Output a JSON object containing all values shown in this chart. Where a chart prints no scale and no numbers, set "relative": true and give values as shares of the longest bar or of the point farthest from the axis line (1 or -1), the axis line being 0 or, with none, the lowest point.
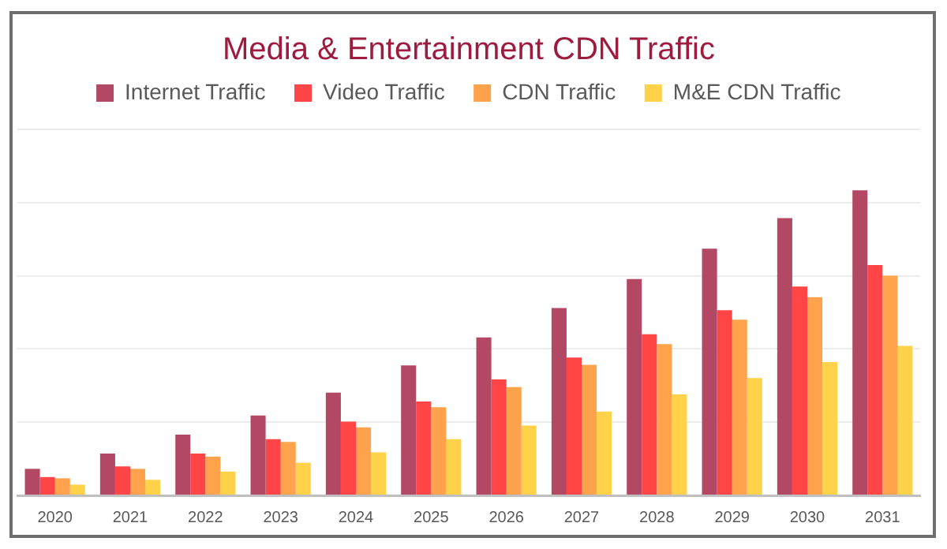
{
  "chart_data": {
    "type": "bar",
    "title": "Media & Entertainment CDN Traffic",
    "categories": [
      "2020",
      "2021",
      "2022",
      "2023",
      "2024",
      "2025",
      "2026",
      "2027",
      "2028",
      "2029",
      "2030",
      "2031"
    ],
    "series": [
      {
        "name": "Internet Traffic",
        "color": "#b34865",
        "values": [
          0.087,
          0.137,
          0.199,
          0.262,
          0.337,
          0.426,
          0.518,
          0.614,
          0.709,
          0.809,
          0.909,
          1
        ]
      },
      {
        "name": "Video Traffic",
        "color": "#ff4545",
        "values": [
          0.06,
          0.095,
          0.137,
          0.184,
          0.242,
          0.308,
          0.38,
          0.452,
          0.528,
          0.607,
          0.685,
          0.755
        ]
      },
      {
        "name": "CDN Traffic",
        "color": "#ffa24c",
        "values": [
          0.056,
          0.087,
          0.127,
          0.175,
          0.223,
          0.289,
          0.355,
          0.428,
          0.496,
          0.576,
          0.65,
          0.72
        ]
      },
      {
        "name": "M&E CDN Traffic",
        "color": "#ffd24a",
        "values": [
          0.035,
          0.051,
          0.078,
          0.107,
          0.141,
          0.184,
          0.229,
          0.275,
          0.331,
          0.385,
          0.437,
          0.49
        ]
      }
    ],
    "relative": true,
    "grid": "y",
    "legend": "top"
  }
}
